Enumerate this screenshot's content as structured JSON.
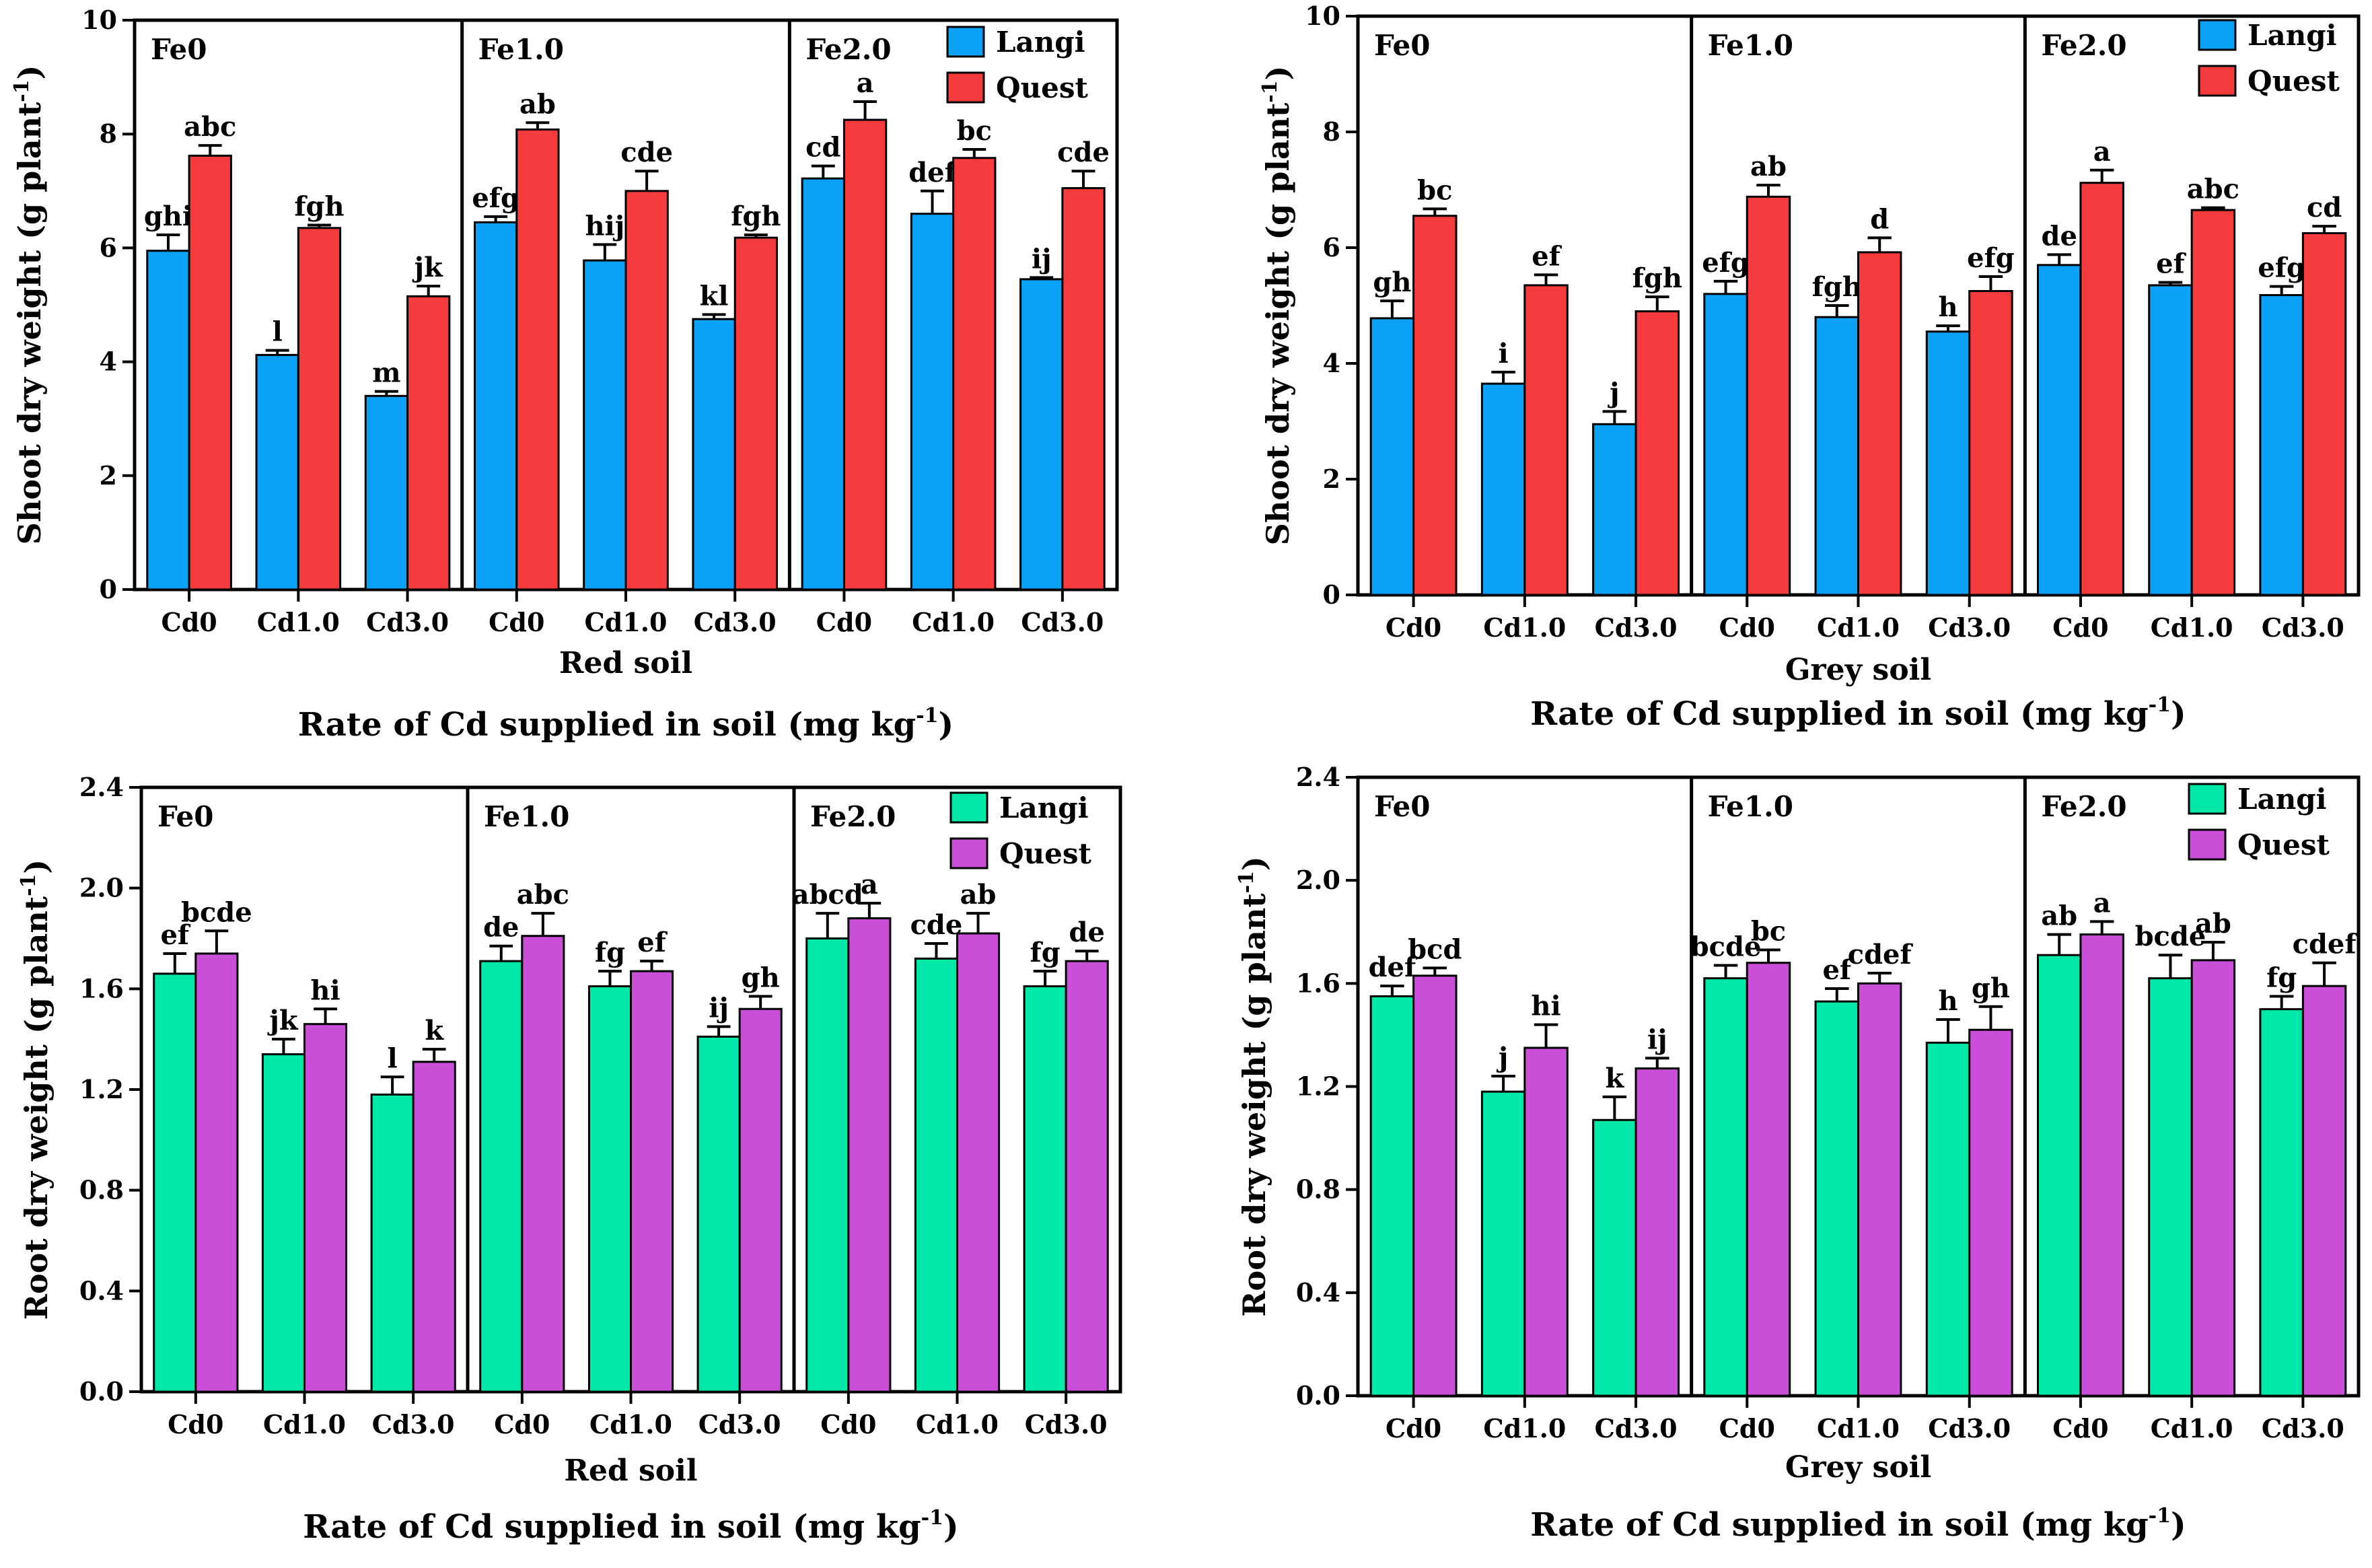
{
  "colors": {
    "shoot_langi": "#0aa1f7",
    "shoot_quest": "#f63b3f",
    "root_langi": "#00e8a8",
    "root_quest": "#c94fd8",
    "axis": "#000000"
  },
  "chart_data": [
    {
      "type": "bar",
      "id": "shoot-red",
      "ylabel": "Shoot dry weight (g plant",
      "ylabel_sup": "-1",
      "ylabel_close": ")",
      "soil_label": "Red soil",
      "xlabel": "Rate of Cd supplied in soil (mg kg",
      "xlabel_sup": "-1",
      "xlabel_close": ")",
      "ylim": [
        0,
        10
      ],
      "yticks": [
        "0",
        "2",
        "4",
        "6",
        "8",
        "10"
      ],
      "ytick_values": [
        0,
        2,
        4,
        6,
        8,
        10
      ],
      "legend": [
        "Langi",
        "Quest"
      ],
      "panels": [
        "Fe0",
        "Fe1.0",
        "Fe2.0"
      ],
      "categories": [
        "Cd0",
        "Cd1.0",
        "Cd3.0"
      ],
      "series": [
        {
          "name": "Langi",
          "values": [
            [
              5.95,
              4.12,
              3.4
            ],
            [
              6.45,
              5.78,
              4.75
            ],
            [
              7.22,
              6.6,
              5.45
            ]
          ],
          "errors": [
            [
              0.28,
              0.08,
              0.08
            ],
            [
              0.1,
              0.28,
              0.08
            ],
            [
              0.22,
              0.4,
              0.03
            ]
          ],
          "letters": [
            [
              "ghi",
              "l",
              "m"
            ],
            [
              "efg",
              "hij",
              "kl"
            ],
            [
              "cd",
              "def",
              "ij"
            ]
          ]
        },
        {
          "name": "Quest",
          "values": [
            [
              7.62,
              6.35,
              5.15
            ],
            [
              8.08,
              7.0,
              6.18
            ],
            [
              8.25,
              7.58,
              7.05
            ]
          ],
          "errors": [
            [
              0.18,
              0.05,
              0.18
            ],
            [
              0.12,
              0.35,
              0.05
            ],
            [
              0.32,
              0.15,
              0.3
            ]
          ],
          "letters": [
            [
              "abc",
              "fgh",
              "jk"
            ],
            [
              "ab",
              "cde",
              "fgh"
            ],
            [
              "a",
              "bc",
              "cde"
            ]
          ]
        }
      ]
    },
    {
      "type": "bar",
      "id": "shoot-grey",
      "ylabel": "Shoot dry weight (g plant",
      "ylabel_sup": "-1",
      "ylabel_close": ")",
      "soil_label": "Grey soil",
      "xlabel": "Rate of Cd supplied in soil (mg kg",
      "xlabel_sup": "-1",
      "xlabel_close": ")",
      "ylim": [
        0,
        10
      ],
      "yticks": [
        "0",
        "2",
        "4",
        "6",
        "8",
        "10"
      ],
      "ytick_values": [
        0,
        2,
        4,
        6,
        8,
        10
      ],
      "legend": [
        "Langi",
        "Quest"
      ],
      "panels": [
        "Fe0",
        "Fe1.0",
        "Fe2.0"
      ],
      "categories": [
        "Cd0",
        "Cd1.0",
        "Cd3.0"
      ],
      "series": [
        {
          "name": "Langi",
          "values": [
            [
              4.78,
              3.65,
              2.95
            ],
            [
              5.2,
              4.8,
              4.55
            ],
            [
              5.7,
              5.35,
              5.18
            ]
          ],
          "errors": [
            [
              0.3,
              0.2,
              0.22
            ],
            [
              0.22,
              0.2,
              0.1
            ],
            [
              0.18,
              0.05,
              0.15
            ]
          ],
          "letters": [
            [
              "gh",
              "i",
              "j"
            ],
            [
              "efg",
              "fgh",
              "h"
            ],
            [
              "de",
              "ef",
              "efg"
            ]
          ]
        },
        {
          "name": "Quest",
          "values": [
            [
              6.55,
              5.35,
              4.9
            ],
            [
              6.88,
              5.92,
              5.25
            ],
            [
              7.12,
              6.65,
              6.25
            ]
          ],
          "errors": [
            [
              0.12,
              0.18,
              0.25
            ],
            [
              0.2,
              0.25,
              0.25
            ],
            [
              0.22,
              0.04,
              0.12
            ]
          ],
          "letters": [
            [
              "bc",
              "ef",
              "fgh"
            ],
            [
              "ab",
              "d",
              "efg"
            ],
            [
              "a",
              "abc",
              "cd"
            ]
          ]
        }
      ]
    },
    {
      "type": "bar",
      "id": "root-red",
      "ylabel": "Root dry weight (g plant",
      "ylabel_sup": "-1",
      "ylabel_close": ")",
      "soil_label": "Red soil",
      "xlabel": "Rate of Cd supplied in soil (mg kg",
      "xlabel_sup": "-1",
      "xlabel_close": ")",
      "ylim": [
        0,
        2.4
      ],
      "yticks": [
        "0.0",
        "0.4",
        "0.8",
        "1.2",
        "1.6",
        "2.0",
        "2.4"
      ],
      "ytick_values": [
        0,
        0.4,
        0.8,
        1.2,
        1.6,
        2.0,
        2.4
      ],
      "legend": [
        "Langi",
        "Quest"
      ],
      "panels": [
        "Fe0",
        "Fe1.0",
        "Fe2.0"
      ],
      "categories": [
        "Cd0",
        "Cd1.0",
        "Cd3.0"
      ],
      "series": [
        {
          "name": "Langi",
          "values": [
            [
              1.66,
              1.34,
              1.18
            ],
            [
              1.71,
              1.61,
              1.41
            ],
            [
              1.8,
              1.72,
              1.61
            ]
          ],
          "errors": [
            [
              0.08,
              0.06,
              0.07
            ],
            [
              0.06,
              0.06,
              0.04
            ],
            [
              0.1,
              0.06,
              0.06
            ]
          ],
          "letters": [
            [
              "ef",
              "jk",
              "l"
            ],
            [
              "de",
              "fg",
              "ij"
            ],
            [
              "abcd",
              "cde",
              "fg"
            ]
          ]
        },
        {
          "name": "Quest",
          "values": [
            [
              1.74,
              1.46,
              1.31
            ],
            [
              1.81,
              1.67,
              1.52
            ],
            [
              1.88,
              1.82,
              1.71
            ]
          ],
          "errors": [
            [
              0.09,
              0.06,
              0.05
            ],
            [
              0.09,
              0.04,
              0.05
            ],
            [
              0.06,
              0.08,
              0.04
            ]
          ],
          "letters": [
            [
              "bcde",
              "hi",
              "k"
            ],
            [
              "abc",
              "ef",
              "gh"
            ],
            [
              "a",
              "ab",
              "de"
            ]
          ]
        }
      ]
    },
    {
      "type": "bar",
      "id": "root-grey",
      "ylabel": "Root dry weight (g plant",
      "ylabel_sup": "-1",
      "ylabel_close": ")",
      "soil_label": "Grey soil",
      "xlabel": "Rate of Cd supplied in soil (mg kg",
      "xlabel_sup": "-1",
      "xlabel_close": ")",
      "ylim": [
        0,
        2.4
      ],
      "yticks": [
        "0.0",
        "0.4",
        "0.8",
        "1.2",
        "1.6",
        "2.0",
        "2.4"
      ],
      "ytick_values": [
        0,
        0.4,
        0.8,
        1.2,
        1.6,
        2.0,
        2.4
      ],
      "legend": [
        "Langi",
        "Quest"
      ],
      "panels": [
        "Fe0",
        "Fe1.0",
        "Fe2.0"
      ],
      "categories": [
        "Cd0",
        "Cd1.0",
        "Cd3.0"
      ],
      "series": [
        {
          "name": "Langi",
          "values": [
            [
              1.55,
              1.18,
              1.07
            ],
            [
              1.62,
              1.53,
              1.37
            ],
            [
              1.71,
              1.62,
              1.5
            ]
          ],
          "errors": [
            [
              0.04,
              0.06,
              0.09
            ],
            [
              0.05,
              0.05,
              0.09
            ],
            [
              0.08,
              0.09,
              0.05
            ]
          ],
          "letters": [
            [
              "def",
              "j",
              "k"
            ],
            [
              "bcde",
              "ef",
              "h"
            ],
            [
              "ab",
              "bcde",
              "fg"
            ]
          ]
        },
        {
          "name": "Quest",
          "values": [
            [
              1.63,
              1.35,
              1.27
            ],
            [
              1.68,
              1.6,
              1.42
            ],
            [
              1.79,
              1.69,
              1.59
            ]
          ],
          "errors": [
            [
              0.03,
              0.09,
              0.04
            ],
            [
              0.05,
              0.04,
              0.09
            ],
            [
              0.05,
              0.07,
              0.09
            ]
          ],
          "letters": [
            [
              "bcd",
              "hi",
              "ij"
            ],
            [
              "bc",
              "cdef",
              "gh"
            ],
            [
              "a",
              "ab",
              "cdef"
            ]
          ]
        }
      ]
    }
  ]
}
